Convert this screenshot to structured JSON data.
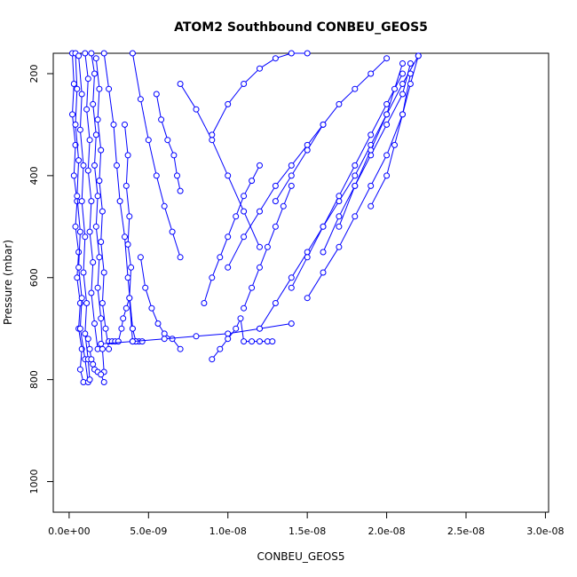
{
  "chart_data": {
    "type": "line",
    "title": "ATOM2 Southbound CONBEU_GEOS5",
    "xlabel": "CONBEU_GEOS5",
    "ylabel": "Pressure (mbar)",
    "xlim": [
      -1e-09,
      3.02e-08
    ],
    "ylim": [
      1060,
      160
    ],
    "y_reversed": true,
    "x_ticks": [
      {
        "value": 0,
        "label": "0.0e+00"
      },
      {
        "value": 5e-09,
        "label": "5.0e-09"
      },
      {
        "value": 1e-08,
        "label": "1.0e-08"
      },
      {
        "value": 1.5e-08,
        "label": "1.5e-08"
      },
      {
        "value": 2e-08,
        "label": "2.0e-08"
      },
      {
        "value": 2.5e-08,
        "label": "2.5e-08"
      },
      {
        "value": 3e-08,
        "label": "3.0e-08"
      }
    ],
    "y_ticks": [
      {
        "value": 200,
        "label": "200"
      },
      {
        "value": 400,
        "label": "400"
      },
      {
        "value": 600,
        "label": "600"
      },
      {
        "value": 800,
        "label": "800"
      },
      {
        "value": 1000,
        "label": "1000"
      }
    ],
    "grid": false,
    "legend": "none",
    "series_color": "#0000ff",
    "marker": "open-circle",
    "series": [
      {
        "x": [
          2e-10,
          3e-10,
          2e-10,
          4e-10,
          3e-10,
          5e-10,
          4e-10,
          6e-10,
          5e-10,
          7e-10,
          6e-10,
          8e-10,
          7e-10,
          9e-10
        ],
        "y": [
          160,
          220,
          280,
          340,
          400,
          450,
          500,
          550,
          600,
          650,
          700,
          740,
          780,
          805
        ]
      },
      {
        "x": [
          4e-10,
          5e-10,
          4e-10,
          6e-10,
          5e-10,
          7e-10,
          6e-10,
          8e-10,
          7e-10,
          1e-09,
          1.2e-09
        ],
        "y": [
          160,
          230,
          300,
          370,
          440,
          510,
          580,
          640,
          700,
          760,
          805
        ]
      },
      {
        "x": [
          6e-10,
          8e-10,
          7e-10,
          9e-10,
          8e-10,
          1e-09,
          9e-10,
          1.1e-09,
          1e-09,
          1.2e-09,
          1.3e-09
        ],
        "y": [
          165,
          240,
          310,
          380,
          450,
          520,
          590,
          650,
          710,
          760,
          800
        ]
      },
      {
        "x": [
          1e-09,
          1.2e-09,
          1.1e-09,
          1.3e-09,
          1.2e-09,
          1.4e-09,
          1.3e-09,
          1.5e-09,
          1.4e-09,
          1.6e-09,
          1.8e-09
        ],
        "y": [
          160,
          210,
          270,
          330,
          390,
          450,
          510,
          570,
          630,
          690,
          740
        ]
      },
      {
        "x": [
          1.4e-09,
          1.6e-09,
          1.5e-09,
          1.7e-09,
          1.6e-09,
          1.8e-09,
          1.7e-09,
          1.9e-09,
          1.8e-09,
          2e-09,
          2.1e-09,
          2.2e-09
        ],
        "y": [
          160,
          200,
          260,
          320,
          380,
          440,
          500,
          560,
          620,
          680,
          740,
          785
        ]
      },
      {
        "x": [
          1.7e-09,
          1.9e-09,
          1.8e-09,
          2e-09,
          1.9e-09,
          2.1e-09,
          2e-09,
          2.2e-09,
          2.1e-09,
          2.3e-09,
          2.5e-09
        ],
        "y": [
          170,
          230,
          290,
          350,
          410,
          470,
          530,
          590,
          650,
          700,
          740
        ]
      },
      {
        "x": [
          1.2e-09,
          1.3e-09,
          1.4e-09,
          1.5e-09,
          1.6e-09,
          1.8e-09,
          2e-09,
          2.2e-09
        ],
        "y": [
          720,
          740,
          760,
          770,
          780,
          785,
          790,
          805
        ]
      },
      {
        "x": [
          2.2e-09,
          2.5e-09,
          2.8e-09,
          3e-09,
          3.2e-09,
          3.5e-09,
          3.7e-09,
          4e-09
        ],
        "y": [
          160,
          230,
          300,
          380,
          450,
          520,
          600,
          700
        ]
      },
      {
        "x": [
          2.5e-09,
          2.7e-09,
          2.9e-09,
          3.1e-09,
          3.3e-09,
          3.4e-09,
          3.6e-09,
          3.8e-09,
          4e-09,
          4.2e-09,
          4.4e-09,
          4.6e-09
        ],
        "y": [
          725,
          725,
          725,
          725,
          700,
          680,
          660,
          640,
          725,
          725,
          725,
          725
        ]
      },
      {
        "x": [
          3.5e-09,
          3.7e-09,
          3.6e-09,
          3.8e-09,
          3.7e-09,
          3.9e-09,
          3.8e-09,
          4e-09,
          4.2e-09
        ],
        "y": [
          300,
          360,
          420,
          480,
          535,
          580,
          640,
          700,
          725
        ]
      },
      {
        "x": [
          4e-09,
          4.5e-09,
          5e-09,
          5.5e-09,
          6e-09,
          6.5e-09,
          7e-09
        ],
        "y": [
          160,
          250,
          330,
          400,
          460,
          510,
          560
        ]
      },
      {
        "x": [
          4.5e-09,
          4.8e-09,
          5.2e-09,
          5.6e-09,
          6e-09,
          6.5e-09,
          7e-09
        ],
        "y": [
          560,
          620,
          660,
          690,
          710,
          720,
          740
        ]
      },
      {
        "x": [
          5.5e-09,
          5.8e-09,
          6.2e-09,
          6.6e-09,
          6.8e-09,
          7e-09
        ],
        "y": [
          240,
          290,
          330,
          360,
          400,
          430
        ]
      },
      {
        "x": [
          2e-09,
          4e-09,
          6e-09,
          8e-09,
          1e-08,
          1.2e-08,
          1.4e-08
        ],
        "y": [
          730,
          725,
          720,
          715,
          710,
          700,
          690
        ]
      },
      {
        "x": [
          9e-09,
          9.5e-09,
          1e-08,
          1.05e-08,
          1.08e-08,
          1.1e-08,
          1.15e-08,
          1.2e-08,
          1.25e-08,
          1.28e-08
        ],
        "y": [
          760,
          740,
          720,
          700,
          680,
          725,
          725,
          725,
          725,
          725
        ]
      },
      {
        "x": [
          8.5e-09,
          9e-09,
          9.5e-09,
          1e-08,
          1.05e-08,
          1.1e-08,
          1.15e-08,
          1.2e-08
        ],
        "y": [
          650,
          600,
          560,
          520,
          480,
          440,
          410,
          380
        ]
      },
      {
        "x": [
          7e-09,
          8e-09,
          9e-09,
          1e-08,
          1.1e-08,
          1.2e-08
        ],
        "y": [
          220,
          270,
          330,
          400,
          470,
          540
        ]
      },
      {
        "x": [
          1e-08,
          1.1e-08,
          1.2e-08,
          1.3e-08,
          1.4e-08,
          1.5e-08,
          1.6e-08
        ],
        "y": [
          580,
          520,
          470,
          420,
          380,
          340,
          300
        ]
      },
      {
        "x": [
          9e-09,
          1e-08,
          1.1e-08,
          1.2e-08,
          1.3e-08,
          1.4e-08,
          1.5e-08
        ],
        "y": [
          320,
          260,
          220,
          190,
          170,
          160,
          160
        ]
      },
      {
        "x": [
          1.1e-08,
          1.15e-08,
          1.2e-08,
          1.25e-08,
          1.3e-08,
          1.35e-08,
          1.4e-08
        ],
        "y": [
          660,
          620,
          580,
          540,
          500,
          460,
          420
        ]
      },
      {
        "x": [
          1.2e-08,
          1.3e-08,
          1.4e-08,
          1.5e-08,
          1.6e-08,
          1.7e-08,
          1.8e-08,
          1.9e-08,
          2e-08,
          2.1e-08,
          2.2e-08
        ],
        "y": [
          700,
          650,
          600,
          550,
          500,
          450,
          400,
          340,
          280,
          220,
          165
        ]
      },
      {
        "x": [
          1.4e-08,
          1.5e-08,
          1.6e-08,
          1.7e-08,
          1.8e-08,
          1.9e-08,
          2e-08,
          2.1e-08
        ],
        "y": [
          620,
          560,
          500,
          440,
          380,
          320,
          260,
          200
        ]
      },
      {
        "x": [
          1.3e-08,
          1.4e-08,
          1.5e-08,
          1.6e-08,
          1.7e-08,
          1.8e-08,
          1.9e-08,
          2e-08
        ],
        "y": [
          450,
          400,
          350,
          300,
          260,
          230,
          200,
          170
        ]
      },
      {
        "x": [
          1.5e-08,
          1.6e-08,
          1.7e-08,
          1.8e-08,
          1.9e-08,
          2e-08,
          2.1e-08,
          2.15e-08
        ],
        "y": [
          640,
          590,
          540,
          480,
          420,
          360,
          280,
          200
        ]
      },
      {
        "x": [
          1.6e-08,
          1.7e-08,
          1.8e-08,
          1.9e-08,
          2e-08,
          2.1e-08,
          2.15e-08
        ],
        "y": [
          550,
          480,
          420,
          360,
          300,
          240,
          180
        ]
      },
      {
        "x": [
          1.7e-08,
          1.8e-08,
          1.9e-08,
          2e-08,
          2.05e-08,
          2.1e-08
        ],
        "y": [
          500,
          420,
          350,
          280,
          230,
          180
        ]
      },
      {
        "x": [
          1.9e-08,
          2e-08,
          2.05e-08,
          2.1e-08,
          2.15e-08,
          2.2e-08
        ],
        "y": [
          460,
          400,
          340,
          280,
          220,
          165
        ]
      }
    ]
  }
}
